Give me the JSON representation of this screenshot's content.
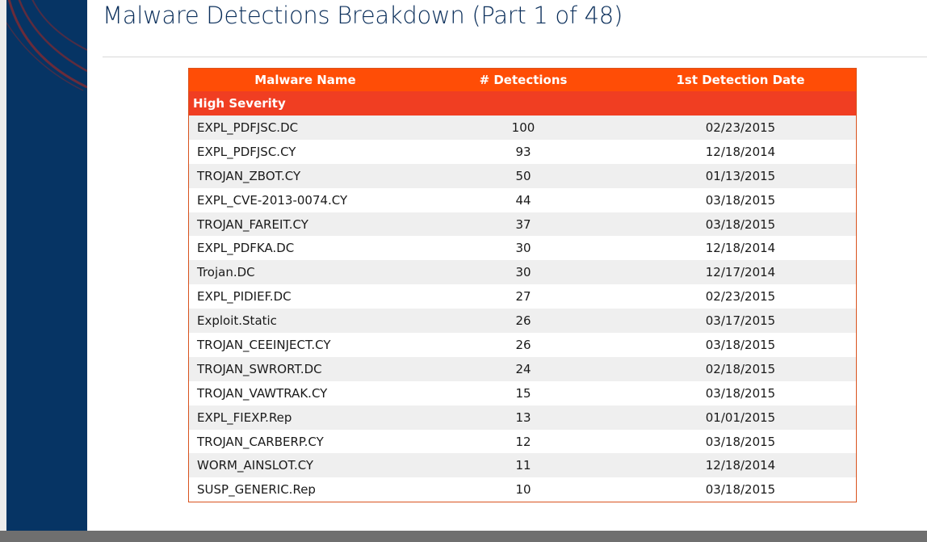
{
  "slide": {
    "title": "Malware Detections Breakdown (Part 1 of 48)"
  },
  "colors": {
    "side_band": "#063464",
    "accent_arcs": "#7d2a32",
    "header_row": "#ff4d06",
    "severity_row": "#f03e22",
    "title_text": "#0b2f5b"
  },
  "table": {
    "columns": [
      "Malware Name",
      "# Detections",
      "1st Detection Date"
    ],
    "group_label": "High Severity",
    "rows": [
      {
        "name": "EXPL_PDFJSC.DC",
        "detections": "100",
        "date": "02/23/2015"
      },
      {
        "name": "EXPL_PDFJSC.CY",
        "detections": "93",
        "date": "12/18/2014"
      },
      {
        "name": "TROJAN_ZBOT.CY",
        "detections": "50",
        "date": "01/13/2015"
      },
      {
        "name": "EXPL_CVE-2013-0074.CY",
        "detections": "44",
        "date": "03/18/2015"
      },
      {
        "name": "TROJAN_FAREIT.CY",
        "detections": "37",
        "date": "03/18/2015"
      },
      {
        "name": "EXPL_PDFKA.DC",
        "detections": "30",
        "date": "12/18/2014"
      },
      {
        "name": "Trojan.DC",
        "detections": "30",
        "date": "12/17/2014"
      },
      {
        "name": "EXPL_PIDIEF.DC",
        "detections": "27",
        "date": "02/23/2015"
      },
      {
        "name": "Exploit.Static",
        "detections": "26",
        "date": "03/17/2015"
      },
      {
        "name": "TROJAN_CEEINJECT.CY",
        "detections": "26",
        "date": "03/18/2015"
      },
      {
        "name": "TROJAN_SWRORT.DC",
        "detections": "24",
        "date": "02/18/2015"
      },
      {
        "name": "TROJAN_VAWTRAK.CY",
        "detections": "15",
        "date": "03/18/2015"
      },
      {
        "name": "EXPL_FIEXP.Rep",
        "detections": "13",
        "date": "01/01/2015"
      },
      {
        "name": "TROJAN_CARBERP.CY",
        "detections": "12",
        "date": "03/18/2015"
      },
      {
        "name": "WORM_AINSLOT.CY",
        "detections": "11",
        "date": "12/18/2014"
      },
      {
        "name": "SUSP_GENERIC.Rep",
        "detections": "10",
        "date": "03/18/2015"
      }
    ]
  }
}
